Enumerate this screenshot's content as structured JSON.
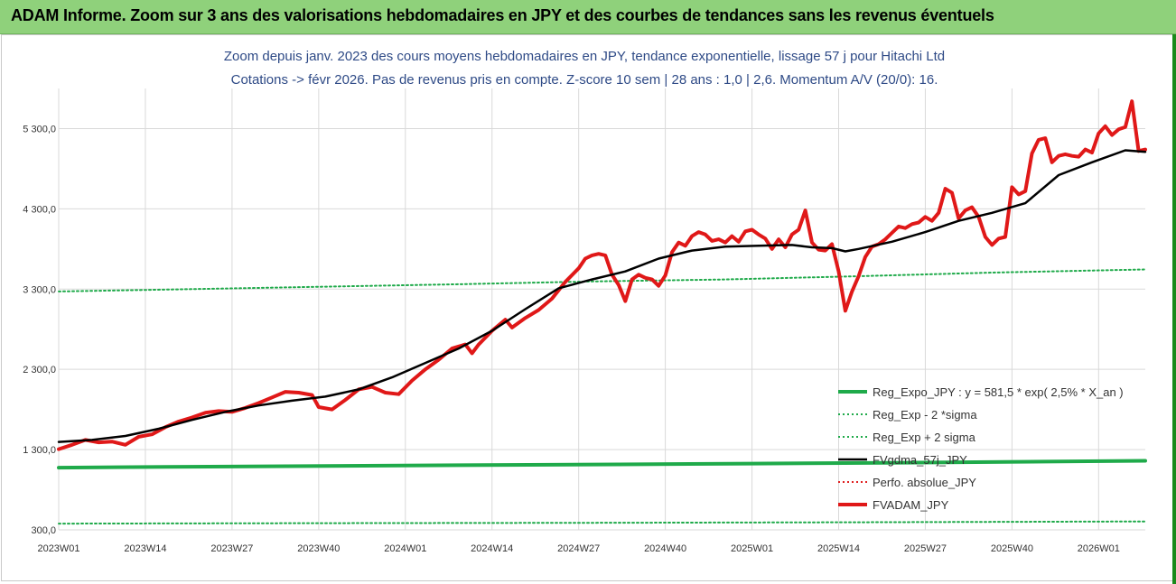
{
  "banner": {
    "title": "ADAM Informe. Zoom sur 3 ans des valorisations hebdomadaires en JPY et des courbes de tendances sans les revenus éventuels"
  },
  "colors": {
    "banner_bg": "#8fd17b",
    "reg_expo": "#1faa4a",
    "reg_band": "#1faa4a",
    "mm": "#000000",
    "perfo": "#e02020",
    "price": "#e01818"
  },
  "chart_data": {
    "type": "line",
    "title": "Zoom depuis janv. 2023 des cours moyens hebdomadaires en JPY, tendance exponentielle, lissage 57 j pour Hitachi Ltd",
    "subtitle": "Cotations -> févr 2026. Pas de revenus pris en compte. Z-score 10 sem | 28 ans : 1,0 | 2,6. Momentum A/V (20/0): 16.",
    "xlabel": "",
    "ylabel": "",
    "ylim": [
      300,
      5800
    ],
    "y_ticks": [
      "300,0",
      "1 300,0",
      "2 300,0",
      "3 300,0",
      "4 300,0",
      "5 300,0"
    ],
    "y_tick_values": [
      300,
      1300,
      2300,
      3300,
      4300,
      5300
    ],
    "x_ticks": [
      "2023W01",
      "2023W14",
      "2023W27",
      "2023W40",
      "2024W01",
      "2024W14",
      "2024W27",
      "2024W40",
      "2025W01",
      "2025W14",
      "2025W27",
      "2025W40",
      "2026W01"
    ],
    "x_tick_index": [
      0,
      13,
      26,
      39,
      52,
      65,
      78,
      91,
      104,
      117,
      130,
      143,
      156
    ],
    "n_weeks": 164,
    "grid": true,
    "legend_position": "bottom-right",
    "series": [
      {
        "name": "Reg_Expo_JPY : y = 581,5 * exp( 2,5% *  X_an )",
        "style": "solid-thick",
        "color": "#1faa4a",
        "x": [
          0,
          16,
          40,
          60,
          84,
          104,
          124,
          148,
          163
        ],
        "values": [
          1075,
          1085,
          1095,
          1105,
          1115,
          1125,
          1135,
          1150,
          1160
        ]
      },
      {
        "name": "Reg_Exp - 2 *sigma",
        "style": "dotted",
        "color": "#1faa4a",
        "x": [
          0,
          40,
          80,
          120,
          163
        ],
        "values": [
          378,
          383,
          388,
          395,
          405
        ]
      },
      {
        "name": "Reg_Exp + 2 sigma",
        "style": "dotted",
        "color": "#1faa4a",
        "x": [
          0,
          20,
          40,
          60,
          80,
          100,
          120,
          140,
          163
        ],
        "values": [
          3270,
          3300,
          3330,
          3360,
          3395,
          3420,
          3460,
          3505,
          3545
        ]
      },
      {
        "name": "FVgdma_57j_JPY",
        "style": "solid",
        "color": "#000000",
        "x": [
          0,
          5,
          10,
          15,
          20,
          25,
          30,
          35,
          40,
          45,
          50,
          55,
          60,
          65,
          70,
          75,
          80,
          85,
          90,
          95,
          100,
          105,
          110,
          113,
          116,
          118,
          120,
          125,
          130,
          135,
          140,
          145,
          150,
          155,
          160,
          163
        ],
        "values": [
          1395,
          1420,
          1470,
          1560,
          1670,
          1770,
          1850,
          1910,
          1960,
          2050,
          2200,
          2380,
          2560,
          2780,
          3050,
          3310,
          3420,
          3520,
          3680,
          3780,
          3830,
          3840,
          3850,
          3820,
          3810,
          3770,
          3800,
          3890,
          4010,
          4150,
          4250,
          4370,
          4720,
          4880,
          5030,
          5010
        ]
      },
      {
        "name": "Perfo. absolue_JPY",
        "style": "dotted",
        "color": "#e02020",
        "x": [],
        "values": []
      },
      {
        "name": "FVADAM_JPY",
        "style": "solid-thick",
        "color": "#e01818",
        "x": [
          0,
          2,
          4,
          6,
          8,
          10,
          12,
          14,
          16,
          18,
          20,
          22,
          24,
          26,
          28,
          30,
          32,
          34,
          36,
          38,
          39,
          41,
          43,
          45,
          47,
          49,
          51,
          53,
          55,
          57,
          59,
          61,
          62,
          63,
          65,
          67,
          68,
          70,
          72,
          74,
          76,
          78,
          79,
          80,
          81,
          82,
          83,
          84,
          85,
          86,
          87,
          88,
          89,
          90,
          91,
          92,
          93,
          94,
          95,
          96,
          97,
          98,
          99,
          100,
          101,
          102,
          103,
          104,
          105,
          106,
          107,
          108,
          109,
          110,
          111,
          112,
          113,
          114,
          115,
          116,
          117,
          118,
          119,
          120,
          121,
          122,
          123,
          124,
          125,
          126,
          127,
          128,
          129,
          130,
          131,
          132,
          133,
          134,
          135,
          136,
          137,
          138,
          139,
          140,
          141,
          142,
          143,
          144,
          145,
          146,
          147,
          148,
          149,
          150,
          151,
          152,
          153,
          154,
          155,
          156,
          157,
          158,
          159,
          160,
          161,
          162,
          163
        ],
        "values": [
          1305,
          1360,
          1420,
          1390,
          1400,
          1360,
          1460,
          1490,
          1580,
          1650,
          1700,
          1760,
          1780,
          1770,
          1820,
          1880,
          1950,
          2020,
          2010,
          1980,
          1830,
          1800,
          1920,
          2050,
          2080,
          2010,
          1990,
          2160,
          2300,
          2420,
          2560,
          2610,
          2500,
          2610,
          2780,
          2920,
          2820,
          2940,
          3040,
          3180,
          3390,
          3560,
          3680,
          3720,
          3740,
          3720,
          3480,
          3350,
          3150,
          3420,
          3480,
          3440,
          3420,
          3340,
          3470,
          3760,
          3880,
          3840,
          3960,
          4010,
          3980,
          3900,
          3920,
          3880,
          3960,
          3890,
          4020,
          4040,
          3980,
          3930,
          3800,
          3920,
          3820,
          3980,
          4040,
          4280,
          3880,
          3790,
          3780,
          3860,
          3520,
          3030,
          3270,
          3460,
          3700,
          3830,
          3860,
          3920,
          4000,
          4080,
          4060,
          4110,
          4130,
          4200,
          4150,
          4250,
          4550,
          4500,
          4180,
          4280,
          4320,
          4200,
          3950,
          3850,
          3930,
          3950,
          4570,
          4480,
          4520,
          4990,
          5160,
          5180,
          4880,
          4960,
          4980,
          4960,
          4950,
          5040,
          5000,
          5240,
          5330,
          5220,
          5290,
          5320,
          5640,
          5020,
          5040
        ]
      }
    ]
  }
}
